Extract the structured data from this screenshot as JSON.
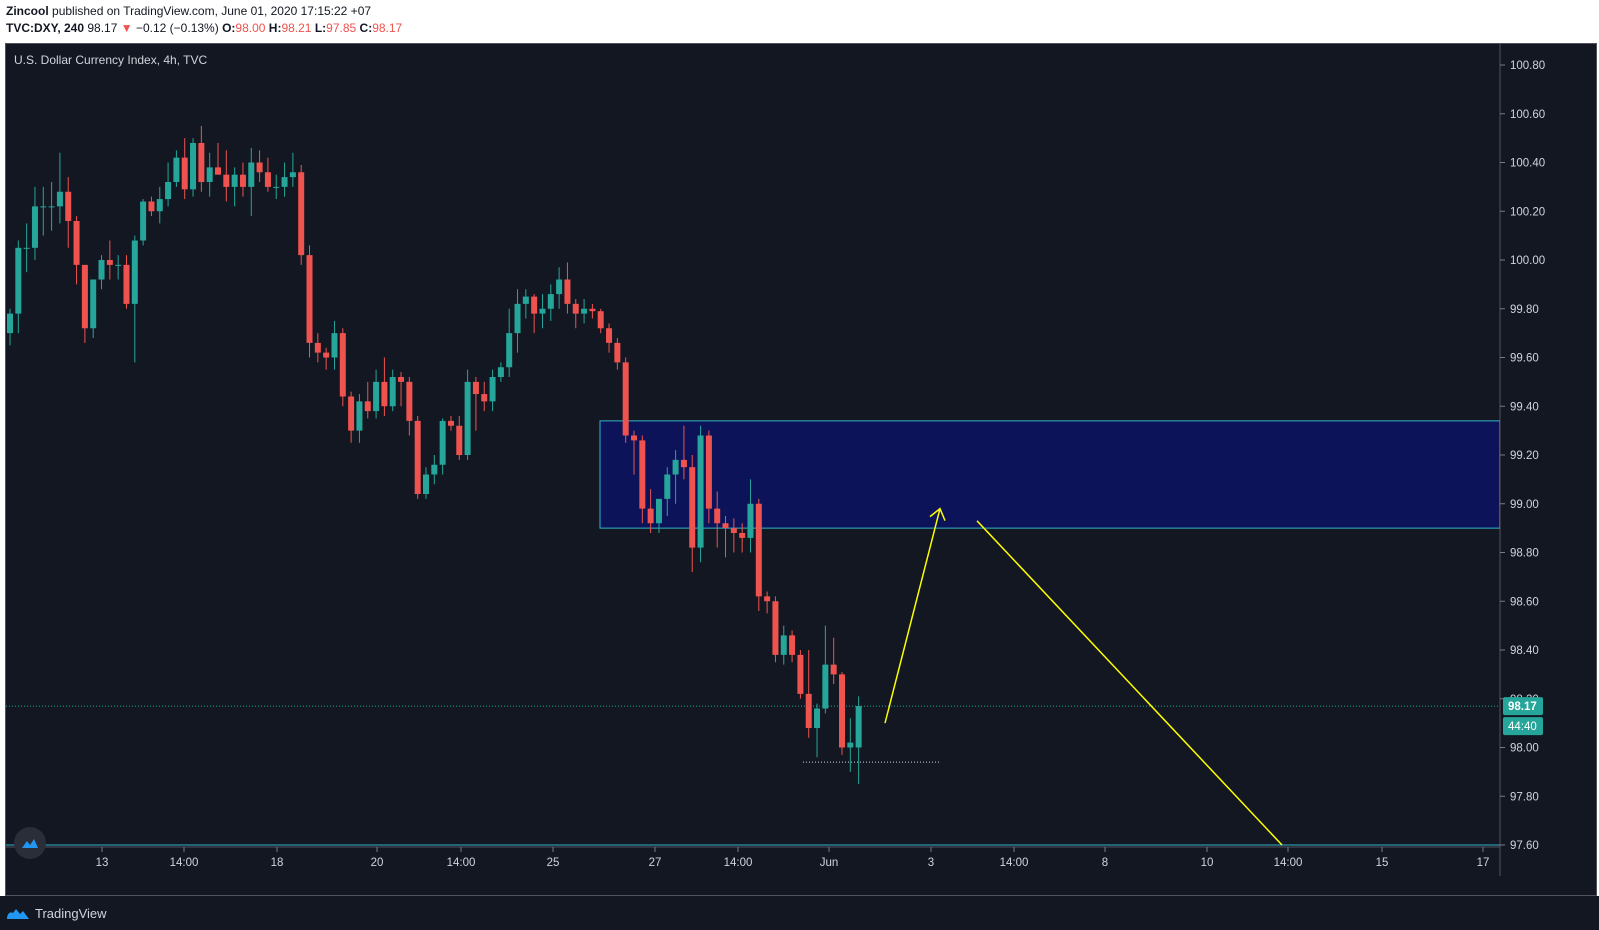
{
  "header": {
    "author": "Zincool",
    "published_text": "published on TradingView.com, June 01, 2020 17:15:22 +07",
    "symbol": "TVC:DXY, 240",
    "last": "98.17",
    "change": "−0.12 (−0.13%)",
    "o_label": "O:",
    "o_value": "98.00",
    "h_label": "H:",
    "h_value": "98.21",
    "l_label": "L:",
    "l_value": "97.85",
    "c_label": "C:",
    "c_value": "98.17"
  },
  "chart_title": "U.S. Dollar Currency Index, 4h, TVC",
  "price_axis": {
    "labels": [
      "100.80",
      "100.60",
      "100.40",
      "100.20",
      "100.00",
      "99.80",
      "99.60",
      "99.40",
      "99.20",
      "99.00",
      "98.80",
      "98.60",
      "98.40",
      "98.20",
      "98.00",
      "97.80",
      "97.60"
    ],
    "current_price": "98.17",
    "countdown": "44:40"
  },
  "time_axis": {
    "labels": [
      "13",
      "14:00",
      "18",
      "20",
      "14:00",
      "25",
      "27",
      "14:00",
      "Jun",
      "3",
      "14:00",
      "8",
      "10",
      "14:00",
      "15",
      "17"
    ]
  },
  "footer": {
    "brand": "TradingView"
  },
  "colors": {
    "up": "#26a69a",
    "down": "#ef5350",
    "zone_fill": "#0d1358",
    "zone_border": "#2fb6c9",
    "projection": "#ffff00",
    "background": "#131722"
  },
  "chart_data": {
    "type": "candlestick",
    "title": "U.S. Dollar Currency Index, 4h, TVC",
    "ylim": [
      97.6,
      100.8
    ],
    "candles": [
      [
        99.7,
        99.8,
        99.65,
        99.78
      ],
      [
        99.78,
        100.08,
        99.7,
        100.05
      ],
      [
        100.05,
        100.15,
        99.95,
        100.05
      ],
      [
        100.05,
        100.3,
        100,
        100.22
      ],
      [
        100.22,
        100.3,
        100.1,
        100.22
      ],
      [
        100.22,
        100.32,
        100.12,
        100.22
      ],
      [
        100.22,
        100.44,
        100.15,
        100.28
      ],
      [
        100.28,
        100.34,
        100.05,
        100.16
      ],
      [
        100.16,
        100.18,
        99.9,
        99.98
      ],
      [
        99.98,
        99.98,
        99.66,
        99.72
      ],
      [
        99.72,
        99.92,
        99.68,
        99.92
      ],
      [
        99.92,
        100.02,
        99.88,
        100
      ],
      [
        100,
        100.08,
        99.92,
        99.98
      ],
      [
        99.98,
        100.02,
        99.92,
        99.98
      ],
      [
        99.98,
        100.02,
        99.8,
        99.82
      ],
      [
        99.82,
        100.1,
        99.58,
        100.08
      ],
      [
        100.08,
        100.25,
        100.06,
        100.24
      ],
      [
        100.24,
        100.26,
        100.18,
        100.2
      ],
      [
        100.2,
        100.3,
        100.15,
        100.25
      ],
      [
        100.25,
        100.4,
        100.22,
        100.32
      ],
      [
        100.32,
        100.45,
        100.3,
        100.42
      ],
      [
        100.42,
        100.5,
        100.25,
        100.29
      ],
      [
        100.29,
        100.5,
        100.26,
        100.48
      ],
      [
        100.48,
        100.55,
        100.28,
        100.32
      ],
      [
        100.32,
        100.44,
        100.26,
        100.38
      ],
      [
        100.38,
        100.48,
        100.36,
        100.35
      ],
      [
        100.35,
        100.45,
        100.24,
        100.3
      ],
      [
        100.3,
        100.38,
        100.22,
        100.35
      ],
      [
        100.35,
        100.4,
        100.26,
        100.3
      ],
      [
        100.3,
        100.46,
        100.18,
        100.4
      ],
      [
        100.4,
        100.45,
        100.32,
        100.36
      ],
      [
        100.36,
        100.42,
        100.28,
        100.3
      ],
      [
        100.3,
        100.35,
        100.25,
        100.3
      ],
      [
        100.3,
        100.4,
        100.26,
        100.34
      ],
      [
        100.34,
        100.44,
        100.3,
        100.36
      ],
      [
        100.36,
        100.39,
        99.98,
        100.02
      ],
      [
        100.02,
        100.06,
        99.6,
        99.66
      ],
      [
        99.66,
        99.7,
        99.58,
        99.62
      ],
      [
        99.62,
        99.64,
        99.55,
        99.6
      ],
      [
        99.6,
        99.75,
        99.55,
        99.7
      ],
      [
        99.7,
        99.72,
        99.4,
        99.44
      ],
      [
        99.44,
        99.46,
        99.25,
        99.3
      ],
      [
        99.3,
        99.45,
        99.25,
        99.42
      ],
      [
        99.42,
        99.5,
        99.35,
        99.38
      ],
      [
        99.38,
        99.55,
        99.35,
        99.5
      ],
      [
        99.5,
        99.6,
        99.36,
        99.4
      ],
      [
        99.4,
        99.55,
        99.38,
        99.52
      ],
      [
        99.52,
        99.54,
        99.4,
        99.5
      ],
      [
        99.5,
        99.52,
        99.28,
        99.34
      ],
      [
        99.34,
        99.36,
        99.02,
        99.04
      ],
      [
        99.04,
        99.15,
        99.02,
        99.12
      ],
      [
        99.12,
        99.2,
        99.08,
        99.16
      ],
      [
        99.16,
        99.35,
        99.12,
        99.34
      ],
      [
        99.34,
        99.36,
        99.3,
        99.32
      ],
      [
        99.32,
        99.36,
        99.18,
        99.2
      ],
      [
        99.2,
        99.55,
        99.18,
        99.5
      ],
      [
        99.5,
        99.52,
        99.3,
        99.45
      ],
      [
        99.45,
        99.5,
        99.38,
        99.42
      ],
      [
        99.42,
        99.55,
        99.38,
        99.52
      ],
      [
        99.52,
        99.58,
        99.5,
        99.56
      ],
      [
        99.56,
        99.8,
        99.52,
        99.7
      ],
      [
        99.7,
        99.88,
        99.62,
        99.82
      ],
      [
        99.82,
        99.88,
        99.76,
        99.85
      ],
      [
        99.85,
        99.86,
        99.7,
        99.78
      ],
      [
        99.78,
        99.86,
        99.72,
        99.8
      ],
      [
        99.8,
        99.9,
        99.75,
        99.86
      ],
      [
        99.86,
        99.97,
        99.8,
        99.92
      ],
      [
        99.92,
        99.99,
        99.78,
        99.82
      ],
      [
        99.82,
        99.84,
        99.72,
        99.78
      ],
      [
        99.78,
        99.84,
        99.74,
        99.8
      ],
      [
        99.8,
        99.82,
        99.76,
        99.79
      ],
      [
        99.79,
        99.8,
        99.7,
        99.72
      ],
      [
        99.72,
        99.74,
        99.62,
        99.66
      ],
      [
        99.66,
        99.68,
        99.55,
        99.58
      ],
      [
        99.58,
        99.6,
        99.25,
        99.28
      ],
      [
        99.28,
        99.3,
        99.12,
        99.26
      ],
      [
        99.26,
        99.28,
        98.92,
        98.98
      ],
      [
        98.98,
        99.06,
        98.88,
        98.92
      ],
      [
        98.92,
        99.02,
        98.88,
        99.02
      ],
      [
        99.02,
        99.15,
        98.95,
        99.12
      ],
      [
        99.12,
        99.22,
        99,
        99.18
      ],
      [
        99.18,
        99.32,
        99.1,
        99.15
      ],
      [
        99.15,
        99.2,
        98.72,
        98.82
      ],
      [
        98.82,
        99.32,
        98.76,
        99.28
      ],
      [
        99.28,
        99.3,
        98.92,
        98.98
      ],
      [
        98.98,
        99.05,
        98.82,
        98.92
      ],
      [
        98.92,
        98.95,
        98.78,
        98.9
      ],
      [
        98.9,
        98.94,
        98.8,
        98.88
      ],
      [
        98.88,
        98.92,
        98.8,
        98.86
      ],
      [
        98.86,
        99.1,
        98.8,
        99.0
      ],
      [
        99.0,
        99.02,
        98.56,
        98.62
      ],
      [
        98.62,
        98.64,
        98.55,
        98.6
      ],
      [
        98.6,
        98.62,
        98.35,
        98.38
      ],
      [
        98.38,
        98.5,
        98.34,
        98.46
      ],
      [
        98.46,
        98.48,
        98.35,
        98.38
      ],
      [
        98.38,
        98.4,
        98.2,
        98.22
      ],
      [
        98.22,
        98.4,
        98.04,
        98.08
      ],
      [
        98.08,
        98.18,
        97.96,
        98.16
      ],
      [
        98.16,
        98.5,
        98.14,
        98.34
      ],
      [
        98.34,
        98.45,
        98.26,
        98.3
      ],
      [
        98.3,
        98.31,
        97.97,
        98.0
      ],
      [
        98.0,
        98.12,
        97.9,
        98.02
      ],
      [
        98.0,
        98.21,
        97.85,
        98.17
      ]
    ],
    "supply_zone": {
      "top": 99.34,
      "bottom": 98.9
    },
    "projection": [
      {
        "label": "up-leg",
        "from": 98.1,
        "to": 98.98
      },
      {
        "label": "down-leg",
        "from": 98.93,
        "to": 97.6
      }
    ],
    "support_dotted_level": 97.94
  }
}
